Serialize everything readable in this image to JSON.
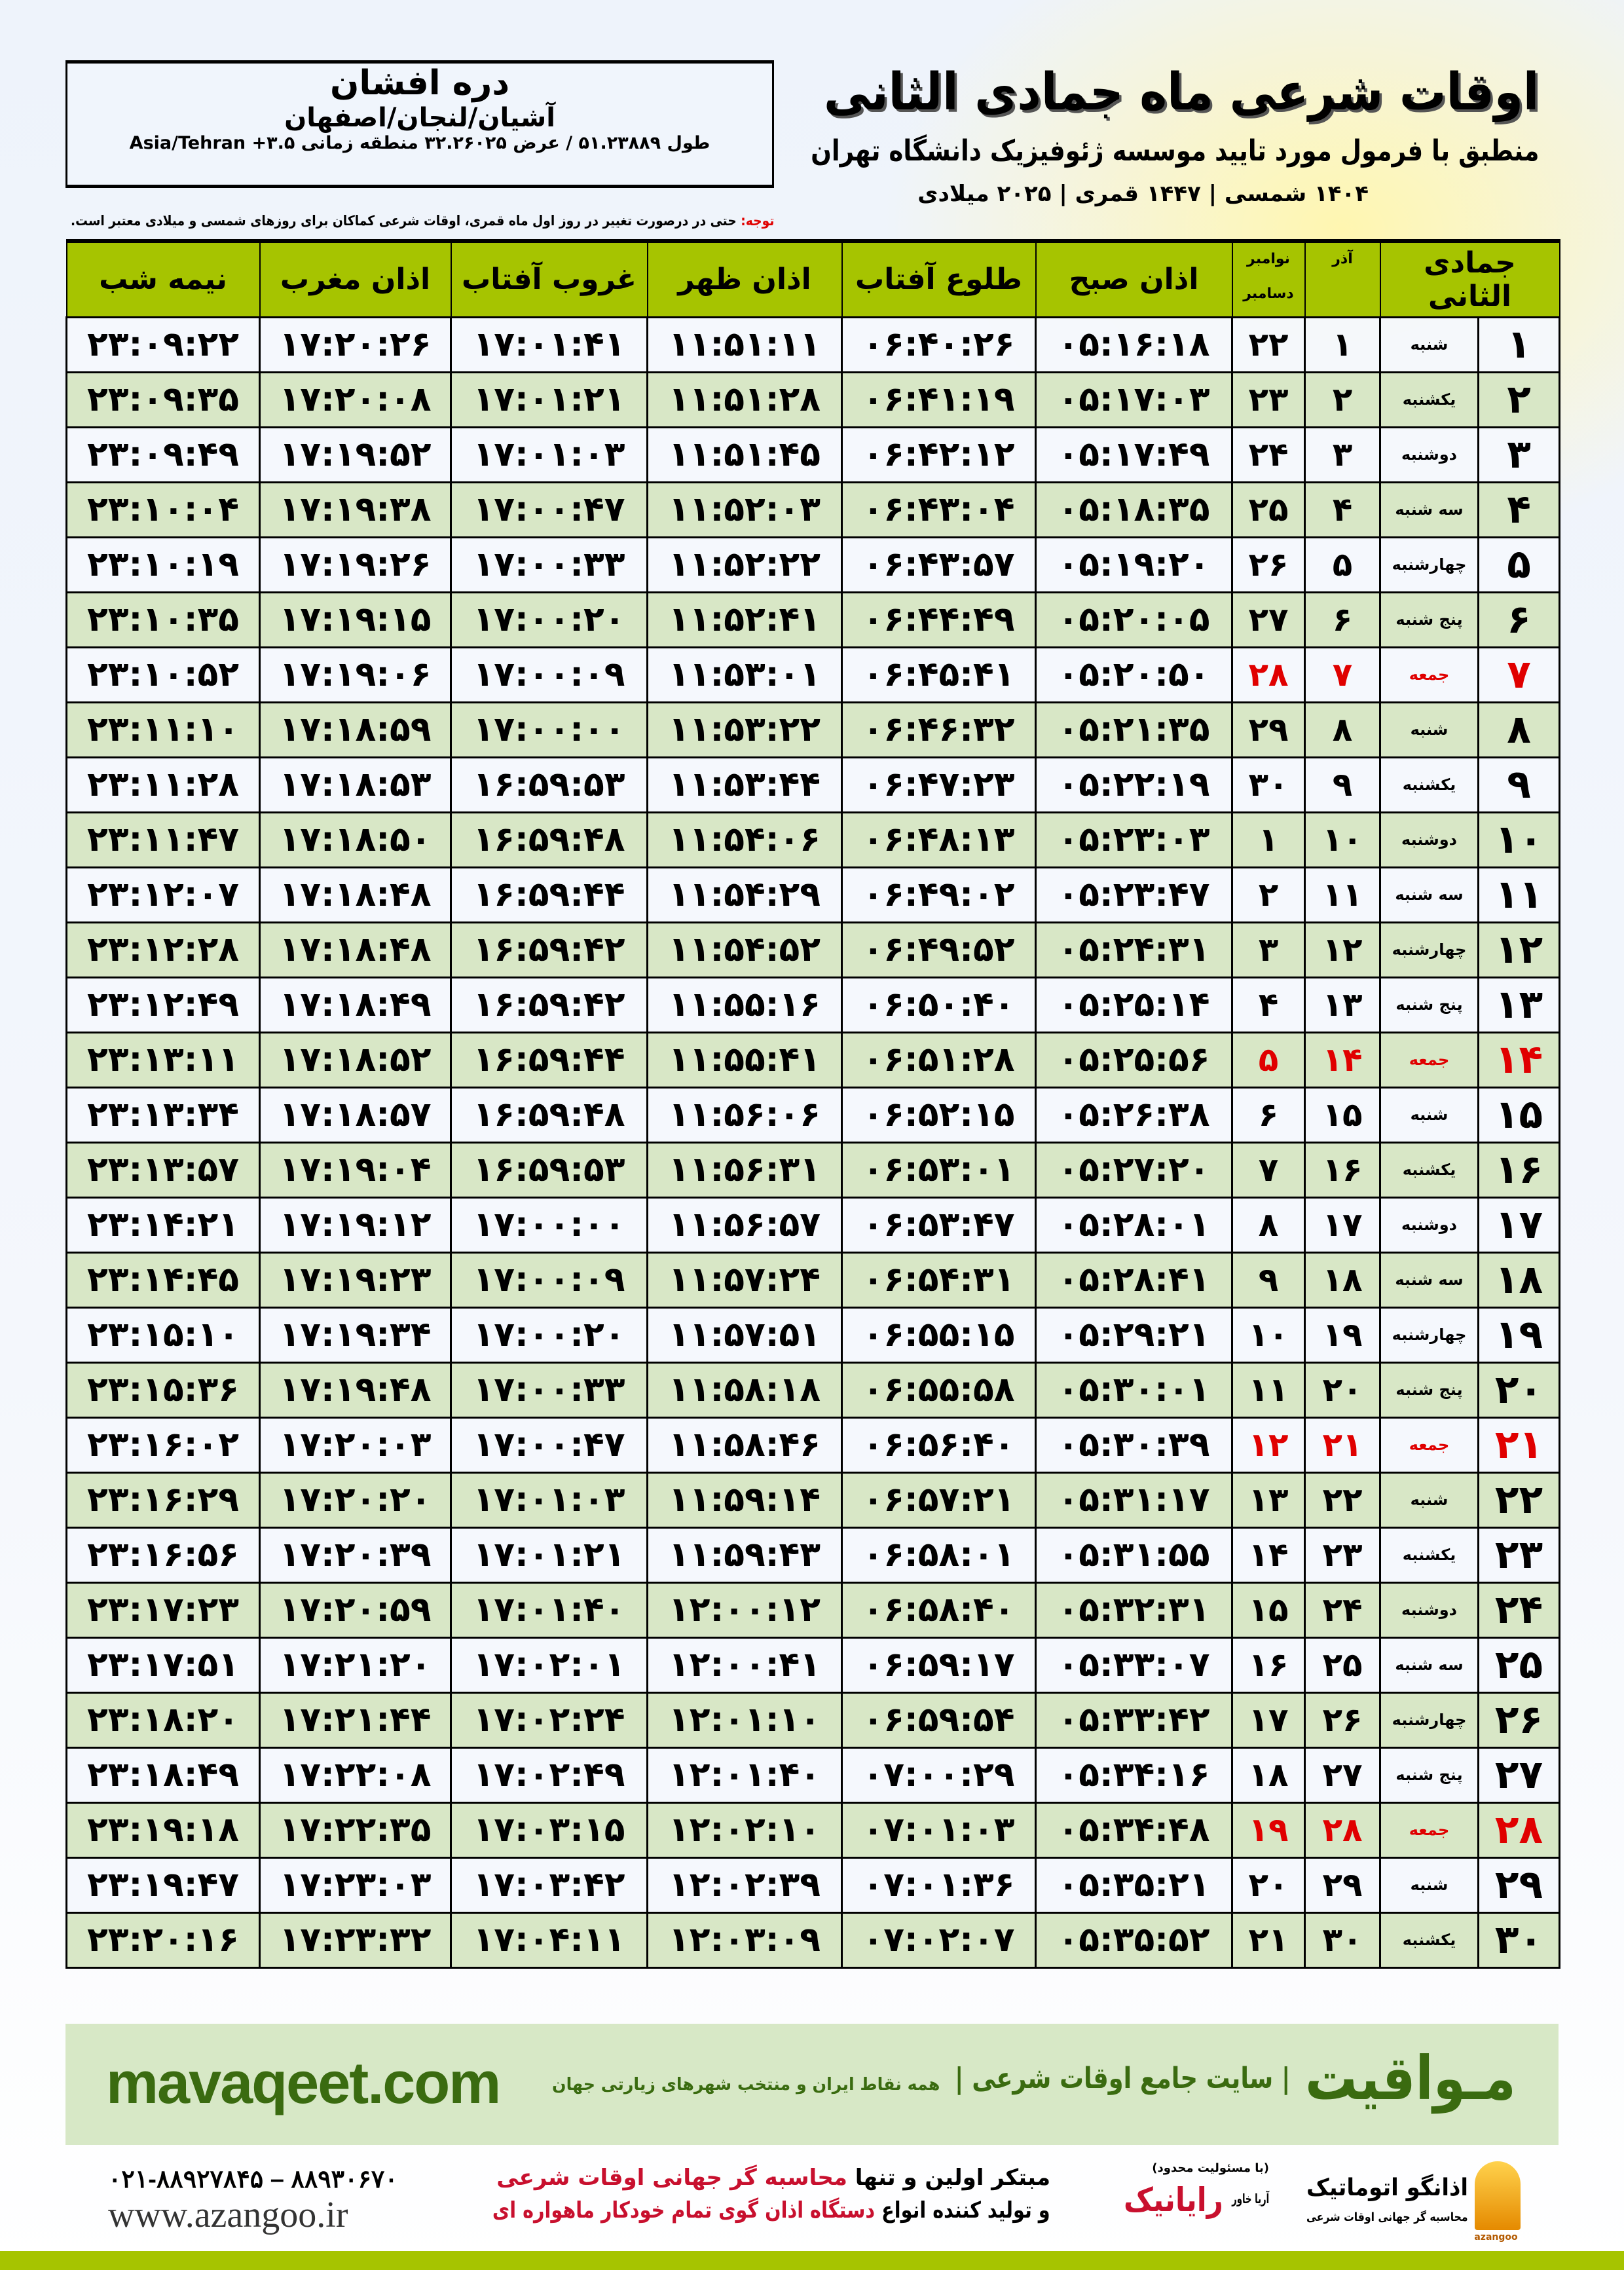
{
  "location": {
    "name": "دره افشان",
    "region": "آشیان/لنجان/اصفهان",
    "coords": "طول ۵۱.۲۳۸۸۹ / عرض ۳۲.۲۶۰۲۵ منطقه زمانی Asia/Tehran +۳.۵"
  },
  "header": {
    "title": "اوقات شرعی ماه جمادی الثانی",
    "subtitle": "منطبق با فرمول مورد تایید موسسه ژئوفیزیک دانشگاه تهران",
    "years": "۱۴۰۴ شمسی | ۱۴۴۷ قمری | ۲۰۲۵ میلادی",
    "note_label": "توجه:",
    "note_text": " حتی در درصورت تغییر در روز اول ماه قمری، اوقات شرعی کماکان برای روزهای شمسی و میلادی معتبر است."
  },
  "colors": {
    "header_green": "#a6c400",
    "row_green": "#d8e7c6",
    "friday_red": "#e00000",
    "brand_green": "#3a6b10"
  },
  "table": {
    "columns": {
      "hijri": "جمادی الثانی",
      "weekday": "",
      "azar": "آذر",
      "gregorian_top": "نوامبر",
      "gregorian_bottom": "دسامبر",
      "fajr": "اذان صبح",
      "sunrise": "طلوع آفتاب",
      "dhuhr": "اذان ظهر",
      "sunset": "غروب آفتاب",
      "maghrib": "اذان مغرب",
      "midnight": "نیمه شب"
    },
    "rows": [
      {
        "hijri": "۱",
        "weekday": "شنبه",
        "azar": "۱",
        "greg": "۲۲",
        "fajr": "۰۵:۱۶:۱۸",
        "sunrise": "۰۶:۴۰:۲۶",
        "dhuhr": "۱۱:۵۱:۱۱",
        "sunset": "۱۷:۰۱:۴۱",
        "maghrib": "۱۷:۲۰:۲۶",
        "midnight": "۲۳:۰۹:۲۲",
        "holiday": false
      },
      {
        "hijri": "۲",
        "weekday": "یکشنبه",
        "azar": "۲",
        "greg": "۲۳",
        "fajr": "۰۵:۱۷:۰۳",
        "sunrise": "۰۶:۴۱:۱۹",
        "dhuhr": "۱۱:۵۱:۲۸",
        "sunset": "۱۷:۰۱:۲۱",
        "maghrib": "۱۷:۲۰:۰۸",
        "midnight": "۲۳:۰۹:۳۵",
        "holiday": false
      },
      {
        "hijri": "۳",
        "weekday": "دوشنبه",
        "azar": "۳",
        "greg": "۲۴",
        "fajr": "۰۵:۱۷:۴۹",
        "sunrise": "۰۶:۴۲:۱۲",
        "dhuhr": "۱۱:۵۱:۴۵",
        "sunset": "۱۷:۰۱:۰۳",
        "maghrib": "۱۷:۱۹:۵۲",
        "midnight": "۲۳:۰۹:۴۹",
        "holiday": false
      },
      {
        "hijri": "۴",
        "weekday": "سه شنبه",
        "azar": "۴",
        "greg": "۲۵",
        "fajr": "۰۵:۱۸:۳۵",
        "sunrise": "۰۶:۴۳:۰۴",
        "dhuhr": "۱۱:۵۲:۰۳",
        "sunset": "۱۷:۰۰:۴۷",
        "maghrib": "۱۷:۱۹:۳۸",
        "midnight": "۲۳:۱۰:۰۴",
        "holiday": false
      },
      {
        "hijri": "۵",
        "weekday": "چهارشنبه",
        "azar": "۵",
        "greg": "۲۶",
        "fajr": "۰۵:۱۹:۲۰",
        "sunrise": "۰۶:۴۳:۵۷",
        "dhuhr": "۱۱:۵۲:۲۲",
        "sunset": "۱۷:۰۰:۳۳",
        "maghrib": "۱۷:۱۹:۲۶",
        "midnight": "۲۳:۱۰:۱۹",
        "holiday": false
      },
      {
        "hijri": "۶",
        "weekday": "پنج شنبه",
        "azar": "۶",
        "greg": "۲۷",
        "fajr": "۰۵:۲۰:۰۵",
        "sunrise": "۰۶:۴۴:۴۹",
        "dhuhr": "۱۱:۵۲:۴۱",
        "sunset": "۱۷:۰۰:۲۰",
        "maghrib": "۱۷:۱۹:۱۵",
        "midnight": "۲۳:۱۰:۳۵",
        "holiday": false
      },
      {
        "hijri": "۷",
        "weekday": "جمعه",
        "azar": "۷",
        "greg": "۲۸",
        "fajr": "۰۵:۲۰:۵۰",
        "sunrise": "۰۶:۴۵:۴۱",
        "dhuhr": "۱۱:۵۳:۰۱",
        "sunset": "۱۷:۰۰:۰۹",
        "maghrib": "۱۷:۱۹:۰۶",
        "midnight": "۲۳:۱۰:۵۲",
        "holiday": true
      },
      {
        "hijri": "۸",
        "weekday": "شنبه",
        "azar": "۸",
        "greg": "۲۹",
        "fajr": "۰۵:۲۱:۳۵",
        "sunrise": "۰۶:۴۶:۳۲",
        "dhuhr": "۱۱:۵۳:۲۲",
        "sunset": "۱۷:۰۰:۰۰",
        "maghrib": "۱۷:۱۸:۵۹",
        "midnight": "۲۳:۱۱:۱۰",
        "holiday": false
      },
      {
        "hijri": "۹",
        "weekday": "یکشنبه",
        "azar": "۹",
        "greg": "۳۰",
        "fajr": "۰۵:۲۲:۱۹",
        "sunrise": "۰۶:۴۷:۲۳",
        "dhuhr": "۱۱:۵۳:۴۴",
        "sunset": "۱۶:۵۹:۵۳",
        "maghrib": "۱۷:۱۸:۵۳",
        "midnight": "۲۳:۱۱:۲۸",
        "holiday": false
      },
      {
        "hijri": "۱۰",
        "weekday": "دوشنبه",
        "azar": "۱۰",
        "greg": "۱",
        "fajr": "۰۵:۲۳:۰۳",
        "sunrise": "۰۶:۴۸:۱۳",
        "dhuhr": "۱۱:۵۴:۰۶",
        "sunset": "۱۶:۵۹:۴۸",
        "maghrib": "۱۷:۱۸:۵۰",
        "midnight": "۲۳:۱۱:۴۷",
        "holiday": false
      },
      {
        "hijri": "۱۱",
        "weekday": "سه شنبه",
        "azar": "۱۱",
        "greg": "۲",
        "fajr": "۰۵:۲۳:۴۷",
        "sunrise": "۰۶:۴۹:۰۲",
        "dhuhr": "۱۱:۵۴:۲۹",
        "sunset": "۱۶:۵۹:۴۴",
        "maghrib": "۱۷:۱۸:۴۸",
        "midnight": "۲۳:۱۲:۰۷",
        "holiday": false
      },
      {
        "hijri": "۱۲",
        "weekday": "چهارشنبه",
        "azar": "۱۲",
        "greg": "۳",
        "fajr": "۰۵:۲۴:۳۱",
        "sunrise": "۰۶:۴۹:۵۲",
        "dhuhr": "۱۱:۵۴:۵۲",
        "sunset": "۱۶:۵۹:۴۲",
        "maghrib": "۱۷:۱۸:۴۸",
        "midnight": "۲۳:۱۲:۲۸",
        "holiday": false
      },
      {
        "hijri": "۱۳",
        "weekday": "پنج شنبه",
        "azar": "۱۳",
        "greg": "۴",
        "fajr": "۰۵:۲۵:۱۴",
        "sunrise": "۰۶:۵۰:۴۰",
        "dhuhr": "۱۱:۵۵:۱۶",
        "sunset": "۱۶:۵۹:۴۲",
        "maghrib": "۱۷:۱۸:۴۹",
        "midnight": "۲۳:۱۲:۴۹",
        "holiday": false
      },
      {
        "hijri": "۱۴",
        "weekday": "جمعه",
        "azar": "۱۴",
        "greg": "۵",
        "fajr": "۰۵:۲۵:۵۶",
        "sunrise": "۰۶:۵۱:۲۸",
        "dhuhr": "۱۱:۵۵:۴۱",
        "sunset": "۱۶:۵۹:۴۴",
        "maghrib": "۱۷:۱۸:۵۲",
        "midnight": "۲۳:۱۳:۱۱",
        "holiday": true
      },
      {
        "hijri": "۱۵",
        "weekday": "شنبه",
        "azar": "۱۵",
        "greg": "۶",
        "fajr": "۰۵:۲۶:۳۸",
        "sunrise": "۰۶:۵۲:۱۵",
        "dhuhr": "۱۱:۵۶:۰۶",
        "sunset": "۱۶:۵۹:۴۸",
        "maghrib": "۱۷:۱۸:۵۷",
        "midnight": "۲۳:۱۳:۳۴",
        "holiday": false
      },
      {
        "hijri": "۱۶",
        "weekday": "یکشنبه",
        "azar": "۱۶",
        "greg": "۷",
        "fajr": "۰۵:۲۷:۲۰",
        "sunrise": "۰۶:۵۳:۰۱",
        "dhuhr": "۱۱:۵۶:۳۱",
        "sunset": "۱۶:۵۹:۵۳",
        "maghrib": "۱۷:۱۹:۰۴",
        "midnight": "۲۳:۱۳:۵۷",
        "holiday": false
      },
      {
        "hijri": "۱۷",
        "weekday": "دوشنبه",
        "azar": "۱۷",
        "greg": "۸",
        "fajr": "۰۵:۲۸:۰۱",
        "sunrise": "۰۶:۵۳:۴۷",
        "dhuhr": "۱۱:۵۶:۵۷",
        "sunset": "۱۷:۰۰:۰۰",
        "maghrib": "۱۷:۱۹:۱۲",
        "midnight": "۲۳:۱۴:۲۱",
        "holiday": false
      },
      {
        "hijri": "۱۸",
        "weekday": "سه شنبه",
        "azar": "۱۸",
        "greg": "۹",
        "fajr": "۰۵:۲۸:۴۱",
        "sunrise": "۰۶:۵۴:۳۱",
        "dhuhr": "۱۱:۵۷:۲۴",
        "sunset": "۱۷:۰۰:۰۹",
        "maghrib": "۱۷:۱۹:۲۳",
        "midnight": "۲۳:۱۴:۴۵",
        "holiday": false
      },
      {
        "hijri": "۱۹",
        "weekday": "چهارشنبه",
        "azar": "۱۹",
        "greg": "۱۰",
        "fajr": "۰۵:۲۹:۲۱",
        "sunrise": "۰۶:۵۵:۱۵",
        "dhuhr": "۱۱:۵۷:۵۱",
        "sunset": "۱۷:۰۰:۲۰",
        "maghrib": "۱۷:۱۹:۳۴",
        "midnight": "۲۳:۱۵:۱۰",
        "holiday": false
      },
      {
        "hijri": "۲۰",
        "weekday": "پنج شنبه",
        "azar": "۲۰",
        "greg": "۱۱",
        "fajr": "۰۵:۳۰:۰۱",
        "sunrise": "۰۶:۵۵:۵۸",
        "dhuhr": "۱۱:۵۸:۱۸",
        "sunset": "۱۷:۰۰:۳۳",
        "maghrib": "۱۷:۱۹:۴۸",
        "midnight": "۲۳:۱۵:۳۶",
        "holiday": false
      },
      {
        "hijri": "۲۱",
        "weekday": "جمعه",
        "azar": "۲۱",
        "greg": "۱۲",
        "fajr": "۰۵:۳۰:۳۹",
        "sunrise": "۰۶:۵۶:۴۰",
        "dhuhr": "۱۱:۵۸:۴۶",
        "sunset": "۱۷:۰۰:۴۷",
        "maghrib": "۱۷:۲۰:۰۳",
        "midnight": "۲۳:۱۶:۰۲",
        "holiday": true
      },
      {
        "hijri": "۲۲",
        "weekday": "شنبه",
        "azar": "۲۲",
        "greg": "۱۳",
        "fajr": "۰۵:۳۱:۱۷",
        "sunrise": "۰۶:۵۷:۲۱",
        "dhuhr": "۱۱:۵۹:۱۴",
        "sunset": "۱۷:۰۱:۰۳",
        "maghrib": "۱۷:۲۰:۲۰",
        "midnight": "۲۳:۱۶:۲۹",
        "holiday": false
      },
      {
        "hijri": "۲۳",
        "weekday": "یکشنبه",
        "azar": "۲۳",
        "greg": "۱۴",
        "fajr": "۰۵:۳۱:۵۵",
        "sunrise": "۰۶:۵۸:۰۱",
        "dhuhr": "۱۱:۵۹:۴۳",
        "sunset": "۱۷:۰۱:۲۱",
        "maghrib": "۱۷:۲۰:۳۹",
        "midnight": "۲۳:۱۶:۵۶",
        "holiday": false
      },
      {
        "hijri": "۲۴",
        "weekday": "دوشنبه",
        "azar": "۲۴",
        "greg": "۱۵",
        "fajr": "۰۵:۳۲:۳۱",
        "sunrise": "۰۶:۵۸:۴۰",
        "dhuhr": "۱۲:۰۰:۱۲",
        "sunset": "۱۷:۰۱:۴۰",
        "maghrib": "۱۷:۲۰:۵۹",
        "midnight": "۲۳:۱۷:۲۳",
        "holiday": false
      },
      {
        "hijri": "۲۵",
        "weekday": "سه شنبه",
        "azar": "۲۵",
        "greg": "۱۶",
        "fajr": "۰۵:۳۳:۰۷",
        "sunrise": "۰۶:۵۹:۱۷",
        "dhuhr": "۱۲:۰۰:۴۱",
        "sunset": "۱۷:۰۲:۰۱",
        "maghrib": "۱۷:۲۱:۲۰",
        "midnight": "۲۳:۱۷:۵۱",
        "holiday": false
      },
      {
        "hijri": "۲۶",
        "weekday": "چهارشنبه",
        "azar": "۲۶",
        "greg": "۱۷",
        "fajr": "۰۵:۳۳:۴۲",
        "sunrise": "۰۶:۵۹:۵۴",
        "dhuhr": "۱۲:۰۱:۱۰",
        "sunset": "۱۷:۰۲:۲۴",
        "maghrib": "۱۷:۲۱:۴۴",
        "midnight": "۲۳:۱۸:۲۰",
        "holiday": false
      },
      {
        "hijri": "۲۷",
        "weekday": "پنج شنبه",
        "azar": "۲۷",
        "greg": "۱۸",
        "fajr": "۰۵:۳۴:۱۶",
        "sunrise": "۰۷:۰۰:۲۹",
        "dhuhr": "۱۲:۰۱:۴۰",
        "sunset": "۱۷:۰۲:۴۹",
        "maghrib": "۱۷:۲۲:۰۸",
        "midnight": "۲۳:۱۸:۴۹",
        "holiday": false
      },
      {
        "hijri": "۲۸",
        "weekday": "جمعه",
        "azar": "۲۸",
        "greg": "۱۹",
        "fajr": "۰۵:۳۴:۴۸",
        "sunrise": "۰۷:۰۱:۰۳",
        "dhuhr": "۱۲:۰۲:۱۰",
        "sunset": "۱۷:۰۳:۱۵",
        "maghrib": "۱۷:۲۲:۳۵",
        "midnight": "۲۳:۱۹:۱۸",
        "holiday": true
      },
      {
        "hijri": "۲۹",
        "weekday": "شنبه",
        "azar": "۲۹",
        "greg": "۲۰",
        "fajr": "۰۵:۳۵:۲۱",
        "sunrise": "۰۷:۰۱:۳۶",
        "dhuhr": "۱۲:۰۲:۳۹",
        "sunset": "۱۷:۰۳:۴۲",
        "maghrib": "۱۷:۲۳:۰۳",
        "midnight": "۲۳:۱۹:۴۷",
        "holiday": false
      },
      {
        "hijri": "۳۰",
        "weekday": "یکشنبه",
        "azar": "۳۰",
        "greg": "۲۱",
        "fajr": "۰۵:۳۵:۵۲",
        "sunrise": "۰۷:۰۲:۰۷",
        "dhuhr": "۱۲:۰۳:۰۹",
        "sunset": "۱۷:۰۴:۱۱",
        "maghrib": "۱۷:۲۳:۳۲",
        "midnight": "۲۳:۲۰:۱۶",
        "holiday": false
      }
    ]
  },
  "banner": {
    "brand": "مـواقیت",
    "tagline": "| سایت جامع اوقات شرعی |",
    "sub": "همه نقاط ایران و منتخب شهرهای زیارتی جهان",
    "url": "mavaqeet.com"
  },
  "footer": {
    "phones": "۰۲۱-۸۸۹۲۷۸۴۵ – ۸۸۹۳۰۶۷۰",
    "website": "www.azangoo.ir",
    "promo1_a": "مبتکر اولین و تنها ",
    "promo1_b": "محاسبه گر جهانی اوقات شرعی",
    "promo2_a": "و تولید کننده انواع ",
    "promo2_b": "دستگاه اذان گوی تمام خودکار ماهواره ای",
    "raianik": "رایانیک",
    "raianik_sub": "آریا خاور",
    "raianik_note": "(با مسئولیت محدود)",
    "azangoo_name": "اذانگو اتوماتیک",
    "azangoo_tag": "محاسبه گر جهانی اوقات شرعی",
    "azangoo_latin": "azangoo"
  }
}
